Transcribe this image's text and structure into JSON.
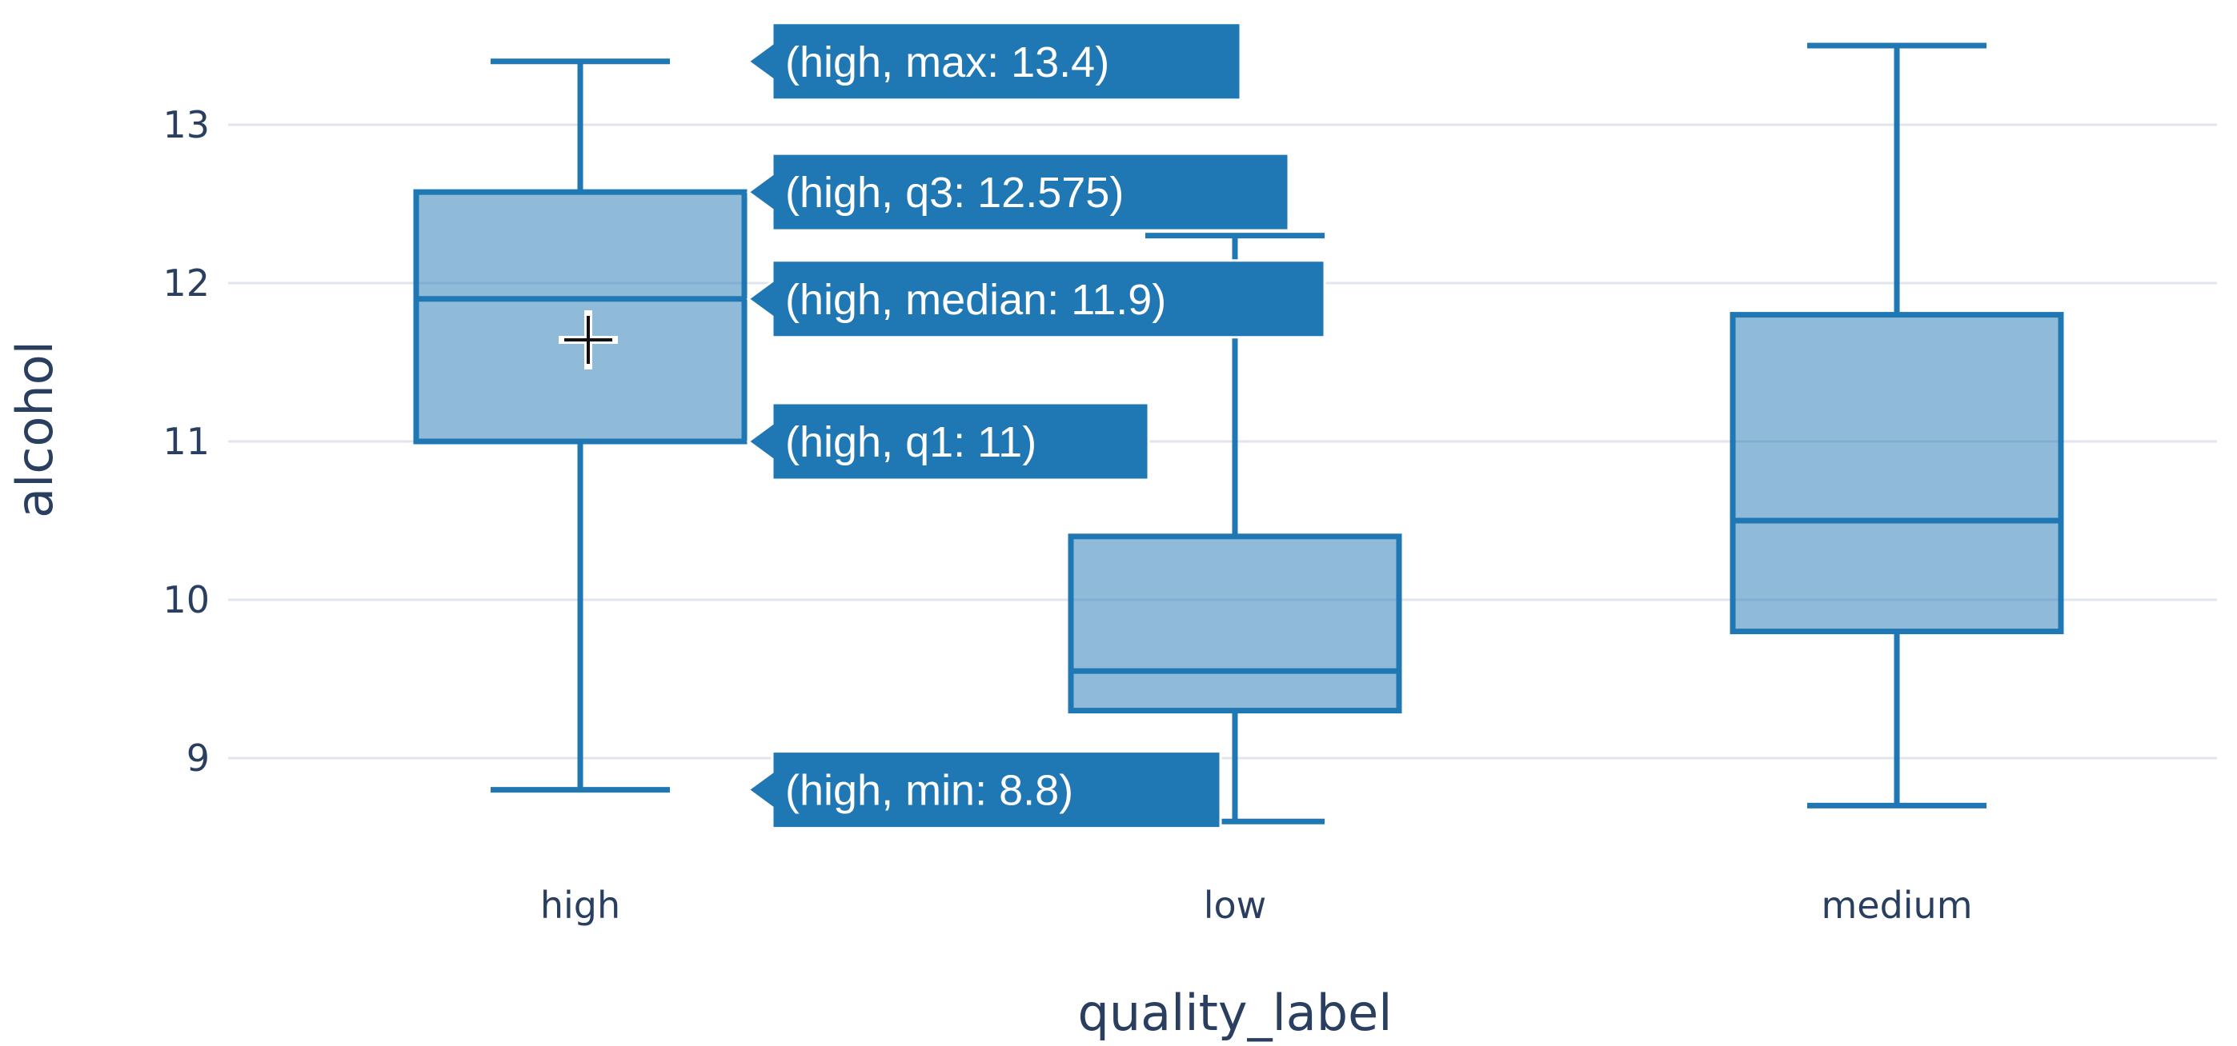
{
  "chart_data": {
    "type": "box",
    "title": "",
    "xlabel": "quality_label",
    "ylabel": "alcohol",
    "categories": [
      "high",
      "low",
      "medium"
    ],
    "yticks": [
      9,
      10,
      11,
      12,
      13
    ],
    "ylim": [
      8.45,
      13.75
    ],
    "grid": true,
    "legend": "none",
    "box_color": "#1f77b4",
    "box_fill": "rgba(31,119,180,0.5)",
    "grid_color": "#e1e6ee",
    "axis_text_color": "#2a3f5f",
    "boxes": [
      {
        "category": "high",
        "min": 8.8,
        "q1": 11.0,
        "median": 11.9,
        "q3": 12.575,
        "max": 13.4
      },
      {
        "category": "low",
        "min": 8.6,
        "q1": 9.3,
        "median": 9.55,
        "q3": 10.4,
        "max": 12.3
      },
      {
        "category": "medium",
        "min": 8.7,
        "q1": 9.8,
        "median": 10.5,
        "q3": 11.8,
        "max": 13.5
      }
    ],
    "hover": {
      "category": "high",
      "labels": [
        {
          "stat": "max",
          "text": "(high, max: 13.4)"
        },
        {
          "stat": "q3",
          "text": "(high, q3: 12.575)"
        },
        {
          "stat": "median",
          "text": "(high, median: 11.9)"
        },
        {
          "stat": "q1",
          "text": "(high, q1: 11)"
        },
        {
          "stat": "min",
          "text": "(high, min: 8.8)"
        }
      ]
    },
    "cursor_icon": "crosshair-cursor-icon"
  }
}
